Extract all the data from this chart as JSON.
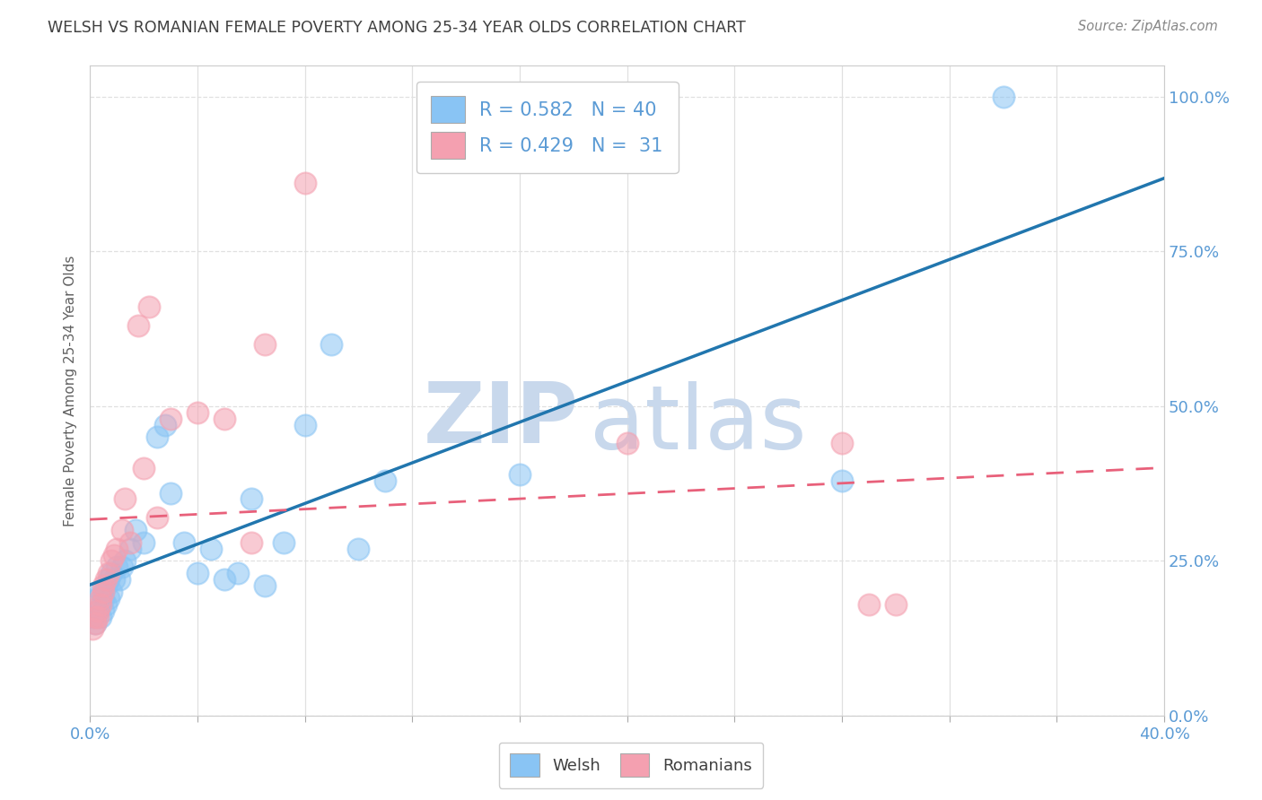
{
  "title": "WELSH VS ROMANIAN FEMALE POVERTY AMONG 25-34 YEAR OLDS CORRELATION CHART",
  "source": "Source: ZipAtlas.com",
  "ylabel": "Female Poverty Among 25-34 Year Olds",
  "xlim": [
    0.0,
    0.4
  ],
  "ylim": [
    0.0,
    1.05
  ],
  "xtick_positions": [
    0.0,
    0.04,
    0.08,
    0.12,
    0.16,
    0.2,
    0.24,
    0.28,
    0.32,
    0.36,
    0.4
  ],
  "ytick_positions": [
    0.0,
    0.25,
    0.5,
    0.75,
    1.0
  ],
  "welsh_color": "#89C4F4",
  "romanian_color": "#F4A0B0",
  "welsh_line_color": "#2176AE",
  "romanian_line_color": "#E8607A",
  "welsh_R": 0.582,
  "welsh_N": 40,
  "romanian_R": 0.429,
  "romanian_N": 31,
  "welsh_x": [
    0.001,
    0.002,
    0.003,
    0.003,
    0.004,
    0.004,
    0.005,
    0.005,
    0.006,
    0.006,
    0.007,
    0.007,
    0.008,
    0.008,
    0.009,
    0.01,
    0.011,
    0.012,
    0.013,
    0.015,
    0.017,
    0.02,
    0.025,
    0.028,
    0.03,
    0.035,
    0.04,
    0.045,
    0.05,
    0.055,
    0.06,
    0.065,
    0.072,
    0.08,
    0.09,
    0.1,
    0.11,
    0.16,
    0.28,
    0.34
  ],
  "welsh_y": [
    0.16,
    0.15,
    0.17,
    0.19,
    0.16,
    0.2,
    0.17,
    0.19,
    0.18,
    0.21,
    0.19,
    0.22,
    0.2,
    0.23,
    0.22,
    0.24,
    0.22,
    0.24,
    0.25,
    0.27,
    0.3,
    0.28,
    0.45,
    0.47,
    0.36,
    0.28,
    0.23,
    0.27,
    0.22,
    0.23,
    0.35,
    0.21,
    0.28,
    0.47,
    0.6,
    0.27,
    0.38,
    0.39,
    0.38,
    1.0
  ],
  "romanian_x": [
    0.001,
    0.002,
    0.002,
    0.003,
    0.003,
    0.004,
    0.004,
    0.005,
    0.005,
    0.006,
    0.007,
    0.008,
    0.009,
    0.01,
    0.012,
    0.013,
    0.015,
    0.018,
    0.02,
    0.022,
    0.025,
    0.03,
    0.04,
    0.05,
    0.06,
    0.065,
    0.08,
    0.2,
    0.28,
    0.29,
    0.3
  ],
  "romanian_y": [
    0.14,
    0.15,
    0.16,
    0.16,
    0.17,
    0.18,
    0.19,
    0.2,
    0.21,
    0.22,
    0.23,
    0.25,
    0.26,
    0.27,
    0.3,
    0.35,
    0.28,
    0.63,
    0.4,
    0.66,
    0.32,
    0.48,
    0.49,
    0.48,
    0.28,
    0.6,
    0.86,
    0.44,
    0.44,
    0.18,
    0.18
  ],
  "watermark_zip": "ZIP",
  "watermark_atlas": "atlas",
  "watermark_color": "#C8D8EC",
  "legend_text_color": "#5B9BD5",
  "title_color": "#404040",
  "source_color": "#888888",
  "axis_label_color": "#606060",
  "tick_color": "#5B9BD5",
  "grid_color": "#E0E0E0",
  "grid_style": "--",
  "background_color": "#FFFFFF"
}
